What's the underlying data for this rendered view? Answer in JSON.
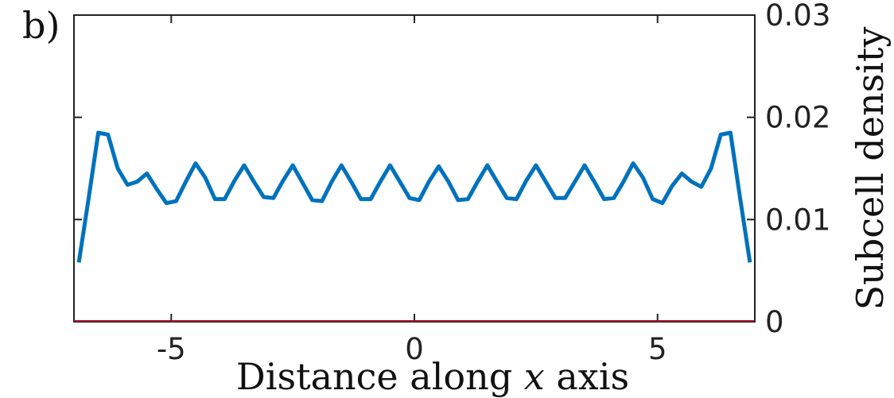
{
  "panel_label": "b)",
  "chart_data": {
    "type": "line",
    "title": "",
    "xlabel_parts": [
      "Distance along ",
      "x",
      " axis"
    ],
    "ylabel": "Subcell density",
    "xlim": [
      -7,
      7
    ],
    "ylim": [
      0,
      0.03
    ],
    "x_ticks": [
      -5,
      0,
      5
    ],
    "x_tick_labels": [
      "-5",
      "0",
      "5"
    ],
    "y_ticks": [
      0,
      0.01,
      0.02,
      0.03
    ],
    "y_tick_labels": [
      "0",
      "0.01",
      "0.02",
      "0.03"
    ],
    "y_axis_side": "right",
    "grid": false,
    "colors": {
      "series": "#0072bd",
      "baseline": "#a2142f",
      "axes": "#222222"
    },
    "series": [
      {
        "x": [
          -6.9,
          -6.7,
          -6.5,
          -6.3,
          -6.1,
          -5.9,
          -5.7,
          -5.5,
          -5.3,
          -5.1,
          -4.9,
          -4.7,
          -4.5,
          -4.3,
          -4.1,
          -3.9,
          -3.7,
          -3.5,
          -3.3,
          -3.1,
          -2.9,
          -2.7,
          -2.5,
          -2.3,
          -2.1,
          -1.9,
          -1.7,
          -1.5,
          -1.3,
          -1.1,
          -0.9,
          -0.7,
          -0.5,
          -0.3,
          -0.1,
          0.1,
          0.3,
          0.5,
          0.7,
          0.9,
          1.1,
          1.3,
          1.5,
          1.7,
          1.9,
          2.1,
          2.3,
          2.5,
          2.7,
          2.9,
          3.1,
          3.3,
          3.5,
          3.7,
          3.9,
          4.1,
          4.3,
          4.5,
          4.7,
          4.9,
          5.1,
          5.3,
          5.5,
          5.7,
          5.9,
          6.1,
          6.3,
          6.5,
          6.7,
          6.9
        ],
        "y": [
          0.0058,
          0.012,
          0.0185,
          0.0183,
          0.015,
          0.0134,
          0.0137,
          0.0145,
          0.013,
          0.0116,
          0.0118,
          0.0137,
          0.0155,
          0.0141,
          0.012,
          0.012,
          0.0138,
          0.0153,
          0.0137,
          0.0122,
          0.0121,
          0.0138,
          0.0153,
          0.0136,
          0.0119,
          0.0118,
          0.0137,
          0.0153,
          0.0137,
          0.012,
          0.012,
          0.0137,
          0.0153,
          0.0137,
          0.0121,
          0.0119,
          0.0137,
          0.0152,
          0.0137,
          0.0119,
          0.012,
          0.0137,
          0.0153,
          0.0137,
          0.0121,
          0.012,
          0.0138,
          0.0153,
          0.0137,
          0.0121,
          0.0121,
          0.0137,
          0.0153,
          0.0137,
          0.012,
          0.0121,
          0.0137,
          0.0155,
          0.0141,
          0.012,
          0.0116,
          0.0133,
          0.0145,
          0.0137,
          0.0132,
          0.015,
          0.0183,
          0.0185,
          0.012,
          0.0058
        ]
      }
    ]
  }
}
